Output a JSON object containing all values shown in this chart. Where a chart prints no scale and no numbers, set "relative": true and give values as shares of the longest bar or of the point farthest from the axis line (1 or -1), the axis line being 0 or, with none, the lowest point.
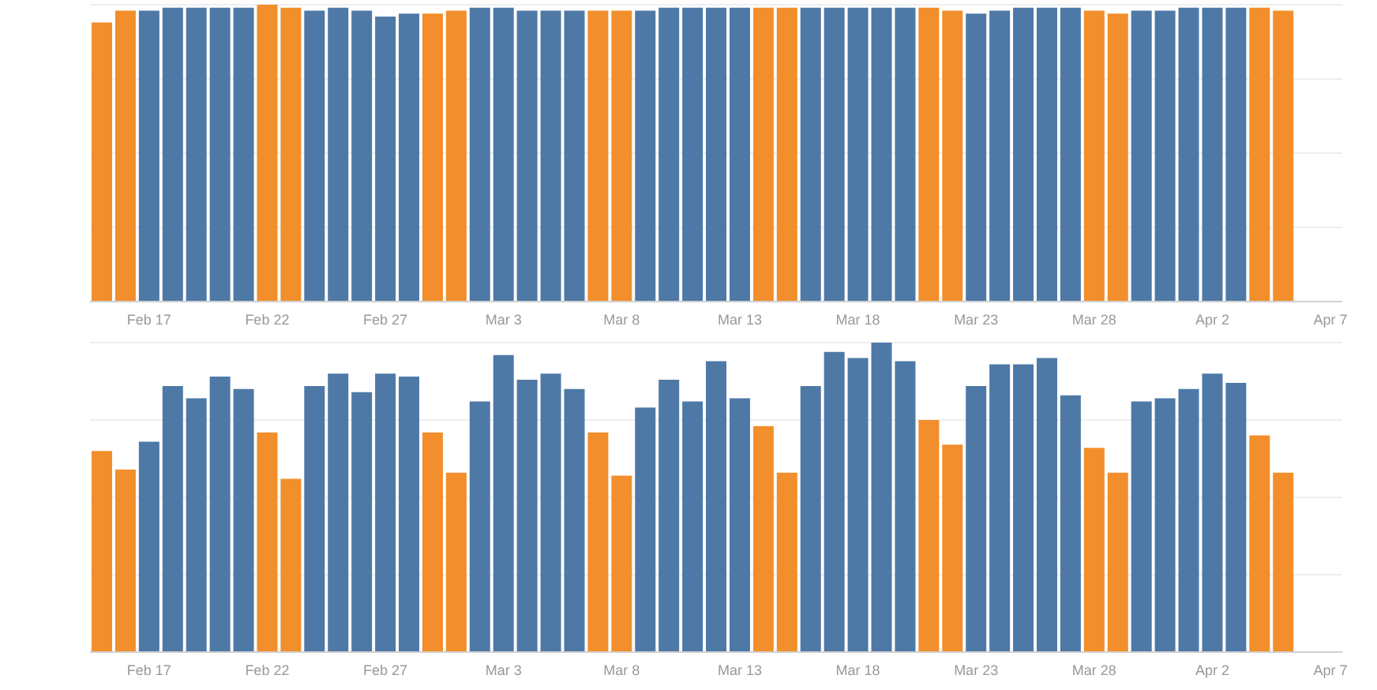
{
  "chart_data": [
    {
      "type": "bar",
      "relative": true,
      "grid": "y",
      "categories": [
        null,
        null,
        "Feb 17",
        null,
        null,
        null,
        null,
        "Feb 22",
        null,
        null,
        null,
        null,
        "Feb 27",
        null,
        null,
        null,
        null,
        "Mar 3",
        null,
        null,
        null,
        null,
        "Mar 8",
        null,
        null,
        null,
        null,
        "Mar 13",
        null,
        null,
        null,
        null,
        "Mar 18",
        null,
        null,
        null,
        null,
        "Mar 23",
        null,
        null,
        null,
        null,
        "Mar 28",
        null,
        null,
        null,
        null,
        "Apr 2",
        null,
        null,
        null,
        null,
        "Apr 7"
      ],
      "values": [
        0.94,
        0.98,
        0.98,
        0.99,
        0.99,
        0.99,
        0.99,
        1,
        0.99,
        0.98,
        0.99,
        0.98,
        0.96,
        0.97,
        0.97,
        0.98,
        0.99,
        0.99,
        0.98,
        0.98,
        0.98,
        0.98,
        0.98,
        0.98,
        0.99,
        0.99,
        0.99,
        0.99,
        0.99,
        0.99,
        0.99,
        0.99,
        0.99,
        0.99,
        0.99,
        0.99,
        0.98,
        0.97,
        0.98,
        0.99,
        0.99,
        0.99,
        0.98,
        0.97,
        0.98,
        0.98,
        0.99,
        0.99,
        0.99,
        0.99,
        0.98,
        null,
        null
      ],
      "colors": [
        "#f28e2b",
        "#f28e2b",
        "#4e79a7",
        "#4e79a7",
        "#4e79a7",
        "#4e79a7",
        "#4e79a7",
        "#f28e2b",
        "#f28e2b",
        "#4e79a7",
        "#4e79a7",
        "#4e79a7",
        "#4e79a7",
        "#4e79a7",
        "#f28e2b",
        "#f28e2b",
        "#4e79a7",
        "#4e79a7",
        "#4e79a7",
        "#4e79a7",
        "#4e79a7",
        "#f28e2b",
        "#f28e2b",
        "#4e79a7",
        "#4e79a7",
        "#4e79a7",
        "#4e79a7",
        "#4e79a7",
        "#f28e2b",
        "#f28e2b",
        "#4e79a7",
        "#4e79a7",
        "#4e79a7",
        "#4e79a7",
        "#4e79a7",
        "#f28e2b",
        "#f28e2b",
        "#4e79a7",
        "#4e79a7",
        "#4e79a7",
        "#4e79a7",
        "#4e79a7",
        "#f28e2b",
        "#f28e2b",
        "#4e79a7",
        "#4e79a7",
        "#4e79a7",
        "#4e79a7",
        "#4e79a7",
        "#f28e2b",
        "#f28e2b",
        "#4e79a7",
        "#4e79a7"
      ]
    },
    {
      "type": "bar",
      "relative": true,
      "grid": "y",
      "categories": [
        null,
        null,
        "Feb 17",
        null,
        null,
        null,
        null,
        "Feb 22",
        null,
        null,
        null,
        null,
        "Feb 27",
        null,
        null,
        null,
        null,
        "Mar 3",
        null,
        null,
        null,
        null,
        "Mar 8",
        null,
        null,
        null,
        null,
        "Mar 13",
        null,
        null,
        null,
        null,
        "Mar 18",
        null,
        null,
        null,
        null,
        "Mar 23",
        null,
        null,
        null,
        null,
        "Mar 28",
        null,
        null,
        null,
        null,
        "Apr 2",
        null,
        null,
        null,
        null,
        "Apr 7"
      ],
      "values": [
        0.65,
        0.59,
        0.68,
        0.86,
        0.82,
        0.89,
        0.85,
        0.71,
        0.56,
        0.86,
        0.9,
        0.84,
        0.9,
        0.89,
        0.71,
        0.58,
        0.81,
        0.96,
        0.88,
        0.9,
        0.85,
        0.71,
        0.57,
        0.79,
        0.88,
        0.81,
        0.94,
        0.82,
        0.73,
        0.58,
        0.86,
        0.97,
        0.95,
        1,
        0.94,
        0.75,
        0.67,
        0.86,
        0.93,
        0.93,
        0.95,
        0.83,
        0.66,
        0.58,
        0.81,
        0.82,
        0.85,
        0.9,
        0.87,
        0.7,
        0.58,
        null,
        null
      ],
      "colors": [
        "#f28e2b",
        "#f28e2b",
        "#4e79a7",
        "#4e79a7",
        "#4e79a7",
        "#4e79a7",
        "#4e79a7",
        "#f28e2b",
        "#f28e2b",
        "#4e79a7",
        "#4e79a7",
        "#4e79a7",
        "#4e79a7",
        "#4e79a7",
        "#f28e2b",
        "#f28e2b",
        "#4e79a7",
        "#4e79a7",
        "#4e79a7",
        "#4e79a7",
        "#4e79a7",
        "#f28e2b",
        "#f28e2b",
        "#4e79a7",
        "#4e79a7",
        "#4e79a7",
        "#4e79a7",
        "#4e79a7",
        "#f28e2b",
        "#f28e2b",
        "#4e79a7",
        "#4e79a7",
        "#4e79a7",
        "#4e79a7",
        "#4e79a7",
        "#f28e2b",
        "#f28e2b",
        "#4e79a7",
        "#4e79a7",
        "#4e79a7",
        "#4e79a7",
        "#4e79a7",
        "#f28e2b",
        "#f28e2b",
        "#4e79a7",
        "#4e79a7",
        "#4e79a7",
        "#4e79a7",
        "#4e79a7",
        "#f28e2b",
        "#f28e2b",
        "#4e79a7",
        "#4e79a7"
      ]
    }
  ]
}
